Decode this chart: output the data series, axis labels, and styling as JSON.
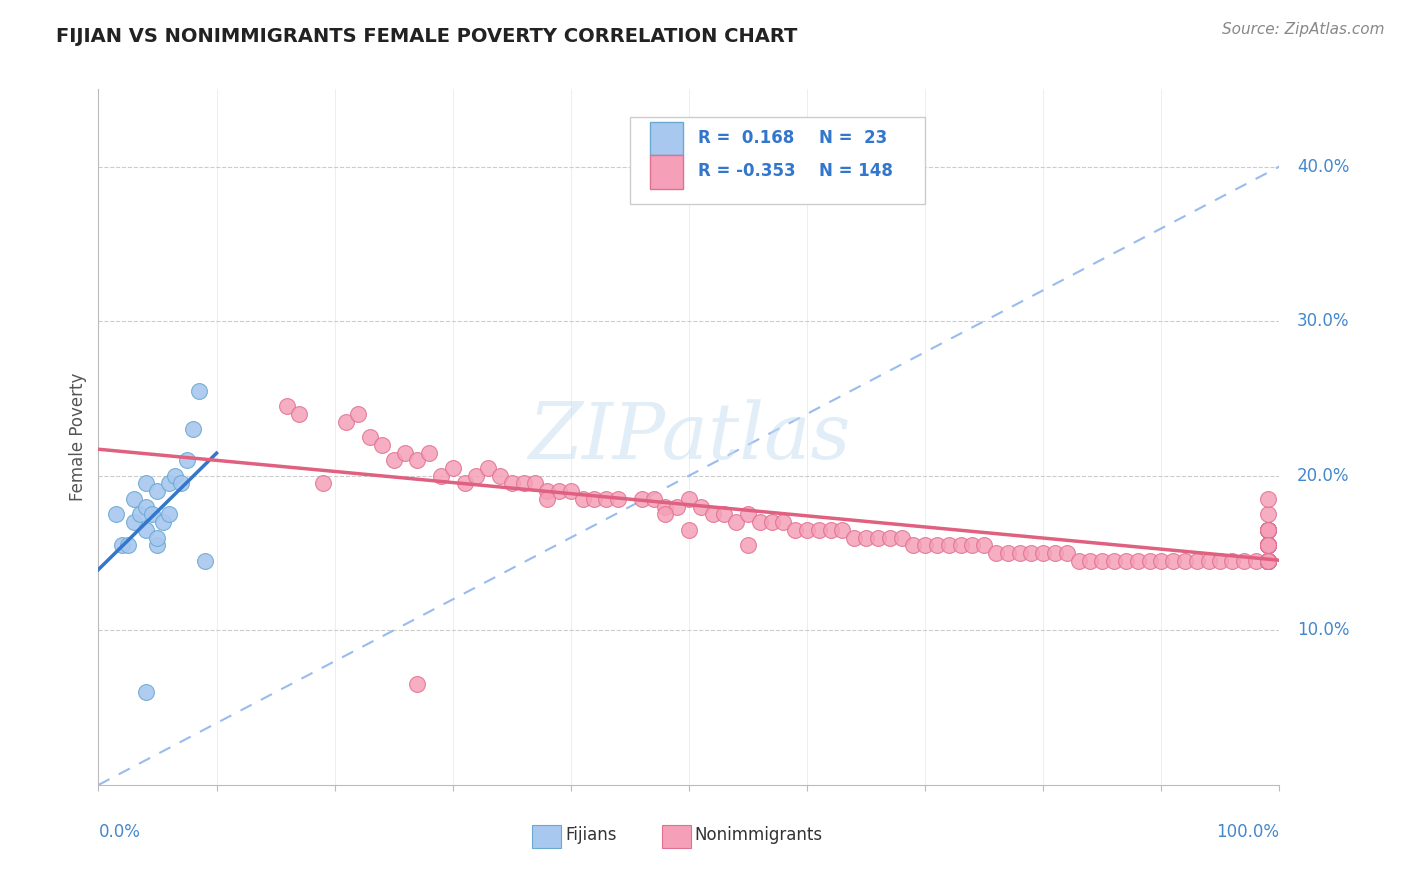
{
  "title": "FIJIAN VS NONIMMIGRANTS FEMALE POVERTY CORRELATION CHART",
  "source": "Source: ZipAtlas.com",
  "ylabel": "Female Poverty",
  "ytick_labels": [
    "10.0%",
    "20.0%",
    "30.0%",
    "40.0%"
  ],
  "ytick_values": [
    0.1,
    0.2,
    0.3,
    0.4
  ],
  "xlim": [
    0.0,
    1.0
  ],
  "ylim": [
    0.0,
    0.45
  ],
  "fijian_color": "#a8c8f0",
  "fijian_edge": "#6aaad0",
  "nonimm_color": "#f5a0b8",
  "nonimm_edge": "#e07090",
  "trend_fijian_color": "#3377cc",
  "trend_nonimm_color": "#e06080",
  "dashed_line_color": "#99bbee",
  "watermark": "ZIPatlas",
  "fijian_x": [
    0.015,
    0.02,
    0.025,
    0.03,
    0.03,
    0.035,
    0.04,
    0.04,
    0.04,
    0.045,
    0.05,
    0.05,
    0.05,
    0.055,
    0.06,
    0.06,
    0.065,
    0.07,
    0.075,
    0.08,
    0.085,
    0.04,
    0.09
  ],
  "fijian_y": [
    0.175,
    0.155,
    0.155,
    0.17,
    0.185,
    0.175,
    0.165,
    0.18,
    0.195,
    0.175,
    0.155,
    0.16,
    0.19,
    0.17,
    0.175,
    0.195,
    0.2,
    0.195,
    0.21,
    0.23,
    0.255,
    0.06,
    0.145
  ],
  "nonimm_x": [
    0.16,
    0.17,
    0.21,
    0.22,
    0.23,
    0.24,
    0.25,
    0.26,
    0.27,
    0.28,
    0.29,
    0.3,
    0.31,
    0.32,
    0.33,
    0.34,
    0.35,
    0.36,
    0.37,
    0.38,
    0.39,
    0.4,
    0.41,
    0.42,
    0.43,
    0.44,
    0.46,
    0.47,
    0.48,
    0.49,
    0.5,
    0.51,
    0.52,
    0.53,
    0.54,
    0.55,
    0.56,
    0.57,
    0.58,
    0.59,
    0.6,
    0.61,
    0.62,
    0.63,
    0.64,
    0.65,
    0.66,
    0.67,
    0.68,
    0.69,
    0.7,
    0.71,
    0.72,
    0.73,
    0.74,
    0.75,
    0.76,
    0.77,
    0.78,
    0.79,
    0.8,
    0.81,
    0.82,
    0.83,
    0.84,
    0.85,
    0.86,
    0.87,
    0.88,
    0.89,
    0.9,
    0.91,
    0.92,
    0.93,
    0.94,
    0.95,
    0.96,
    0.97,
    0.98,
    0.99,
    0.99,
    0.99,
    0.99,
    0.99,
    0.19,
    0.27,
    0.38,
    0.48,
    0.5,
    0.55,
    0.99,
    0.99,
    0.99,
    0.99,
    0.99,
    0.99,
    0.99,
    0.99,
    0.99,
    0.99,
    0.99,
    0.99,
    0.99,
    0.99,
    0.99,
    0.99,
    0.99,
    0.99,
    0.99,
    0.99,
    0.99,
    0.99,
    0.99,
    0.99,
    0.99,
    0.99,
    0.99,
    0.99,
    0.99,
    0.99,
    0.99,
    0.99,
    0.99,
    0.99,
    0.99,
    0.99,
    0.99,
    0.99,
    0.99,
    0.99,
    0.99,
    0.99,
    0.99,
    0.99,
    0.99,
    0.99,
    0.99,
    0.99,
    0.99,
    0.99,
    0.99,
    0.99,
    0.99,
    0.99,
    0.99
  ],
  "nonimm_y": [
    0.245,
    0.24,
    0.235,
    0.24,
    0.225,
    0.22,
    0.21,
    0.215,
    0.21,
    0.215,
    0.2,
    0.205,
    0.195,
    0.2,
    0.205,
    0.2,
    0.195,
    0.195,
    0.195,
    0.19,
    0.19,
    0.19,
    0.185,
    0.185,
    0.185,
    0.185,
    0.185,
    0.185,
    0.18,
    0.18,
    0.185,
    0.18,
    0.175,
    0.175,
    0.17,
    0.175,
    0.17,
    0.17,
    0.17,
    0.165,
    0.165,
    0.165,
    0.165,
    0.165,
    0.16,
    0.16,
    0.16,
    0.16,
    0.16,
    0.155,
    0.155,
    0.155,
    0.155,
    0.155,
    0.155,
    0.155,
    0.15,
    0.15,
    0.15,
    0.15,
    0.15,
    0.15,
    0.15,
    0.145,
    0.145,
    0.145,
    0.145,
    0.145,
    0.145,
    0.145,
    0.145,
    0.145,
    0.145,
    0.145,
    0.145,
    0.145,
    0.145,
    0.145,
    0.145,
    0.155,
    0.155,
    0.165,
    0.175,
    0.185,
    0.195,
    0.065,
    0.185,
    0.175,
    0.165,
    0.155,
    0.145,
    0.145,
    0.145,
    0.145,
    0.145,
    0.145,
    0.145,
    0.145,
    0.155,
    0.155,
    0.155,
    0.155,
    0.165,
    0.165,
    0.165,
    0.165,
    0.165,
    0.165,
    0.165,
    0.155,
    0.155,
    0.155,
    0.155,
    0.155,
    0.155,
    0.145,
    0.145,
    0.145,
    0.145,
    0.145,
    0.145,
    0.145,
    0.145,
    0.145,
    0.145,
    0.145,
    0.145,
    0.145,
    0.145,
    0.145,
    0.145,
    0.145,
    0.145,
    0.145,
    0.145,
    0.145,
    0.145,
    0.145,
    0.145,
    0.145,
    0.145,
    0.145,
    0.145,
    0.145,
    0.145
  ]
}
